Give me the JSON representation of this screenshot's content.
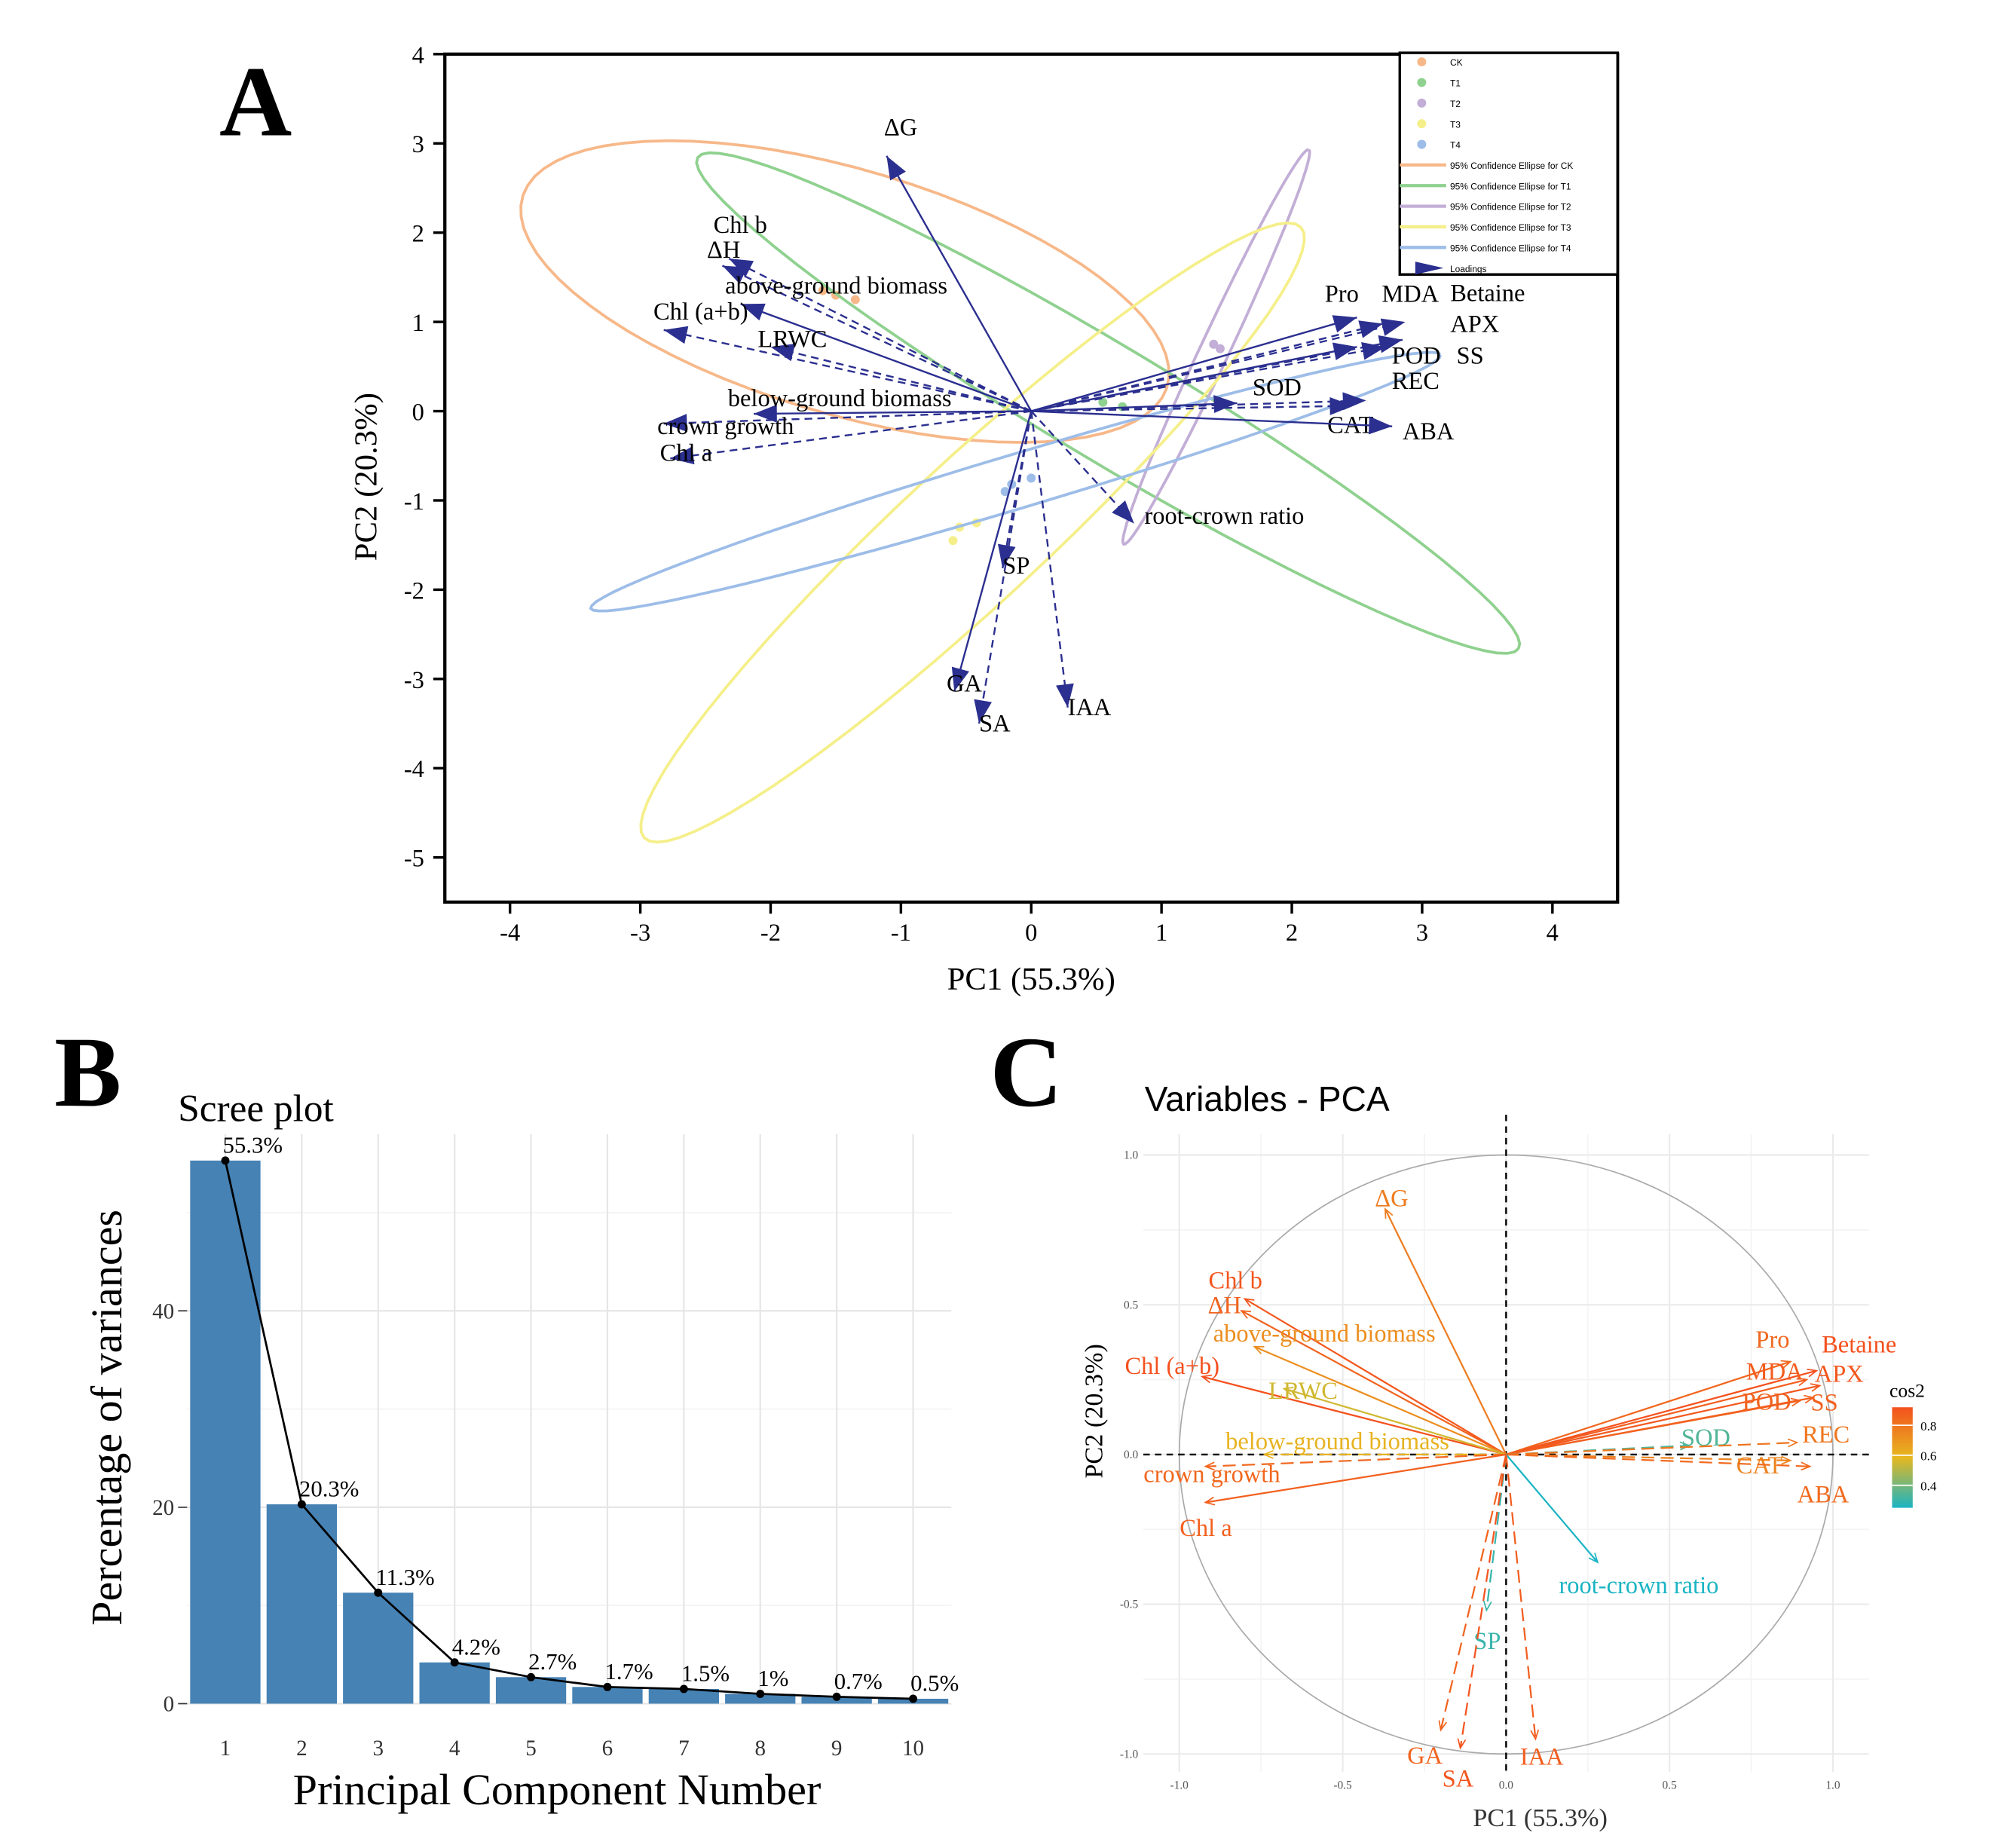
{
  "panels": {
    "a": "A",
    "b": "B",
    "c": "C"
  },
  "chart_data": [
    {
      "type": "biplot",
      "xlabel": "PC1 (55.3%)",
      "ylabel": "PC2 (20.3%)",
      "xlim": [
        -4.5,
        4.5
      ],
      "ylim": [
        -5.5,
        4.0
      ],
      "xticks": [
        -4,
        -3,
        -2,
        -1,
        0,
        1,
        2,
        3,
        4
      ],
      "yticks": [
        -5,
        -4,
        -3,
        -2,
        -1,
        0,
        1,
        2,
        3,
        4
      ],
      "grid": false,
      "legend": {
        "position": "top-right",
        "items": [
          "CK",
          "T1",
          "T2",
          "T3",
          "T4",
          "95% Confidence Ellipse for CK",
          "95% Confidence Ellipse for T1",
          "95% Confidence Ellipse for T2",
          "95% Confidence Ellipse for T3",
          "95% Confidence Ellipse for T4",
          "Loadings"
        ]
      },
      "loading_color": "#2b2f8f",
      "groups": [
        {
          "name": "CK",
          "color": "#f7b889",
          "points": [
            [
              -1.5,
              1.3
            ],
            [
              -1.35,
              1.25
            ],
            [
              -1.6,
              1.35
            ]
          ],
          "ellipse": {
            "center": [
              -1.43,
              1.34
            ],
            "a": [
              2.47,
              -1.08
            ],
            "b": [
              0.3,
              1.3
            ]
          }
        },
        {
          "name": "T1",
          "color": "#8fd18f",
          "points": [
            [
              0.55,
              0.1
            ],
            [
              0.7,
              0.05
            ]
          ],
          "ellipse": {
            "center": [
              0.59,
              0.09
            ],
            "a": [
              3.15,
              -2.75
            ],
            "b": [
              -0.23,
              -0.55
            ]
          }
        },
        {
          "name": "T2",
          "color": "#c2aed6",
          "points": [
            [
              1.4,
              0.75
            ],
            [
              1.45,
              0.7
            ]
          ],
          "ellipse": {
            "center": [
              1.42,
              0.72
            ],
            "a": [
              0.71,
              2.21
            ],
            "b": [
              0.1,
              -0.07
            ]
          }
        },
        {
          "name": "T3",
          "color": "#f5ef8a",
          "points": [
            [
              -0.55,
              -1.3
            ],
            [
              -0.6,
              -1.45
            ],
            [
              -0.42,
              -1.25
            ]
          ],
          "ellipse": {
            "center": [
              -0.45,
              -1.36
            ],
            "a": [
              2.52,
              3.42
            ],
            "b": [
              0.37,
              -0.58
            ]
          }
        },
        {
          "name": "T4",
          "color": "#9dbde8",
          "points": [
            [
              -0.15,
              -0.82
            ],
            [
              0.0,
              -0.75
            ],
            [
              -0.2,
              -0.9
            ]
          ],
          "ellipse": {
            "center": [
              -0.12,
              -0.79
            ],
            "a": [
              3.26,
              1.42
            ],
            "b": [
              0.06,
              -0.29
            ]
          }
        }
      ],
      "loadings": [
        {
          "name": "ΔG",
          "x": -1.11,
          "y": 2.86
        },
        {
          "name": "Chl b",
          "x": -2.32,
          "y": 1.71
        },
        {
          "name": "ΔH",
          "x": -2.37,
          "y": 1.63
        },
        {
          "name": "above-ground biomass",
          "x": -2.23,
          "y": 1.2
        },
        {
          "name": "Chl (a+b)",
          "x": -2.82,
          "y": 0.91
        },
        {
          "name": "LRWC",
          "x": -2.0,
          "y": 0.72
        },
        {
          "name": "below-ground biomass",
          "x": -2.13,
          "y": -0.03
        },
        {
          "name": "crown growth",
          "x": -2.82,
          "y": -0.14
        },
        {
          "name": "Chl a",
          "x": -2.77,
          "y": -0.53
        },
        {
          "name": "Pro",
          "x": 2.5,
          "y": 1.05
        },
        {
          "name": "MDA",
          "x": 2.7,
          "y": 0.98
        },
        {
          "name": "Betaine",
          "x": 2.87,
          "y": 1.0
        },
        {
          "name": "POD",
          "x": 2.5,
          "y": 0.72
        },
        {
          "name": "SS",
          "x": 2.72,
          "y": 0.72
        },
        {
          "name": "APX",
          "x": 2.85,
          "y": 0.8
        },
        {
          "name": "SOD",
          "x": 1.58,
          "y": 0.09
        },
        {
          "name": "REC",
          "x": 2.57,
          "y": 0.12
        },
        {
          "name": "CAT",
          "x": 2.47,
          "y": 0.06
        },
        {
          "name": "ABA",
          "x": 2.77,
          "y": -0.17
        },
        {
          "name": "root-crown ratio",
          "x": 0.79,
          "y": -1.26
        },
        {
          "name": "SP",
          "x": -0.22,
          "y": -1.76
        },
        {
          "name": "GA",
          "x": -0.59,
          "y": -3.14
        },
        {
          "name": "SA",
          "x": -0.4,
          "y": -3.5
        },
        {
          "name": "IAA",
          "x": 0.28,
          "y": -3.32
        }
      ]
    },
    {
      "type": "bar",
      "title": "Scree plot",
      "xlabel": "Principal Component Number",
      "ylabel": "Percentage of variances",
      "categories": [
        1,
        2,
        3,
        4,
        5,
        6,
        7,
        8,
        9,
        10
      ],
      "values": [
        55.3,
        20.3,
        11.3,
        4.2,
        2.7,
        1.7,
        1.5,
        1.0,
        0.7,
        0.5
      ],
      "labels": [
        "55.3%",
        "20.3%",
        "11.3%",
        "4.2%",
        "2.7%",
        "1.7%",
        "1.5%",
        "1%",
        "0.7%",
        "0.5%"
      ],
      "line_overlay": true,
      "ylim": [
        0,
        58
      ],
      "yticks": [
        0,
        20,
        40
      ],
      "grid": true,
      "color": "#4682b4"
    },
    {
      "type": "arrows",
      "title": "Variables - PCA",
      "xlabel": "PC1 (55.3%)",
      "ylabel": "PC2 (20.3%)",
      "xlim": [
        -1.11,
        1.11
      ],
      "ylim": [
        -1.06,
        1.07
      ],
      "xticks": [
        -1.0,
        -0.5,
        0.0,
        0.5,
        1.0
      ],
      "xtick_labels": [
        "-1.0",
        "-0.5",
        "0.0",
        "0.5",
        "1.0"
      ],
      "yticks": [
        -1.0,
        -0.5,
        0.0,
        0.5,
        1.0
      ],
      "ytick_labels": [
        "-1.0",
        "-0.5",
        "0.0",
        "0.5",
        "1.0"
      ],
      "grid": true,
      "colorbar": {
        "title": "cos2",
        "ticks": [
          0.4,
          0.6,
          0.8
        ],
        "tick_labels": [
          "0.4",
          "0.6",
          "0.8"
        ],
        "range": [
          0.25,
          0.92
        ],
        "colors": [
          "#1ab4c3",
          "#e6b820",
          "#f4511e"
        ]
      },
      "loadings": [
        {
          "name": "ΔG",
          "x": -0.37,
          "y": 0.82,
          "cos2": 0.78
        },
        {
          "name": "Chl b",
          "x": -0.8,
          "y": 0.52,
          "cos2": 0.9
        },
        {
          "name": "ΔH",
          "x": -0.81,
          "y": 0.48,
          "cos2": 0.86
        },
        {
          "name": "above-ground biomass",
          "x": -0.77,
          "y": 0.36,
          "cos2": 0.72
        },
        {
          "name": "Chl (a+b)",
          "x": -0.93,
          "y": 0.26,
          "cos2": 0.92
        },
        {
          "name": "LRWC",
          "x": -0.68,
          "y": 0.22,
          "cos2": 0.55
        },
        {
          "name": "below-ground biomass",
          "x": -0.74,
          "y": 0.0,
          "cos2": 0.6
        },
        {
          "name": "crown growth",
          "x": -0.92,
          "y": -0.04,
          "cos2": 0.85
        },
        {
          "name": "Chl a",
          "x": -0.92,
          "y": -0.16,
          "cos2": 0.87
        },
        {
          "name": "Pro",
          "x": 0.87,
          "y": 0.31,
          "cos2": 0.85
        },
        {
          "name": "Betaine",
          "x": 0.95,
          "y": 0.28,
          "cos2": 0.92
        },
        {
          "name": "MDA",
          "x": 0.92,
          "y": 0.25,
          "cos2": 0.88
        },
        {
          "name": "APX",
          "x": 0.96,
          "y": 0.23,
          "cos2": 0.9
        },
        {
          "name": "POD",
          "x": 0.9,
          "y": 0.18,
          "cos2": 0.86
        },
        {
          "name": "SS",
          "x": 0.94,
          "y": 0.19,
          "cos2": 0.87
        },
        {
          "name": "SOD",
          "x": 0.56,
          "y": 0.03,
          "cos2": 0.34
        },
        {
          "name": "REC",
          "x": 0.89,
          "y": 0.04,
          "cos2": 0.8
        },
        {
          "name": "CAT",
          "x": 0.87,
          "y": -0.02,
          "cos2": 0.76
        },
        {
          "name": "ABA",
          "x": 0.93,
          "y": -0.04,
          "cos2": 0.84
        },
        {
          "name": "root-crown ratio",
          "x": 0.28,
          "y": -0.36,
          "cos2": 0.2
        },
        {
          "name": "SP",
          "x": -0.06,
          "y": -0.52,
          "cos2": 0.3
        },
        {
          "name": "GA",
          "x": -0.2,
          "y": -0.92,
          "cos2": 0.86
        },
        {
          "name": "SA",
          "x": -0.14,
          "y": -0.98,
          "cos2": 0.91
        },
        {
          "name": "IAA",
          "x": 0.09,
          "y": -0.95,
          "cos2": 0.88
        }
      ]
    }
  ]
}
